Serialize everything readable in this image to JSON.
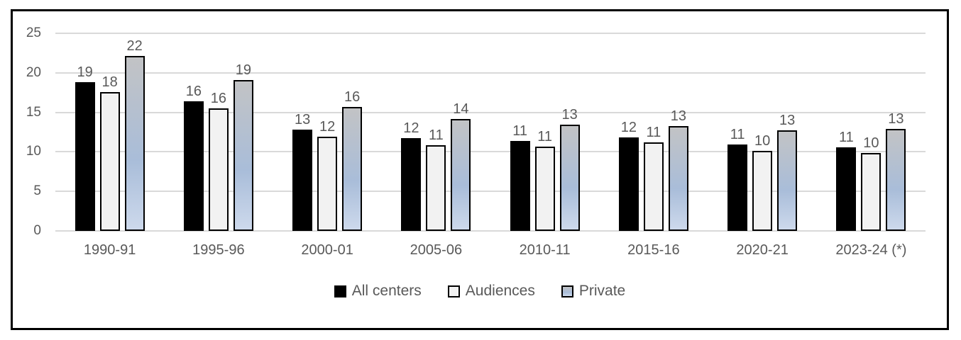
{
  "chart": {
    "background": "#ffffff",
    "frame_border_color": "#000000",
    "gridline_color": "#d9d9d9",
    "text_color": "#595959"
  },
  "chart_data": {
    "type": "bar",
    "title": "",
    "xlabel": "",
    "ylabel": "",
    "categories": [
      "1990-91",
      "1995-96",
      "2000-01",
      "2005-06",
      "2010-11",
      "2015-16",
      "2020-21",
      "2023-24 (*)"
    ],
    "series": [
      {
        "name": "All centers",
        "fill": "#000000",
        "border": "#000000",
        "values": [
          18.8,
          16.4,
          12.8,
          11.7,
          11.4,
          11.8,
          10.9,
          10.6
        ],
        "labels": [
          "19",
          "16",
          "13",
          "12",
          "11",
          "12",
          "11",
          "11"
        ]
      },
      {
        "name": "Audiences",
        "fill": "#f2f2f2",
        "border": "#000000",
        "values": [
          17.6,
          15.5,
          11.9,
          10.8,
          10.7,
          11.2,
          10.1,
          9.9
        ],
        "labels": [
          "18",
          "16",
          "12",
          "11",
          "11",
          "11",
          "10",
          "10"
        ]
      },
      {
        "name": "Private",
        "fill": "gradient",
        "gradient": [
          "#c2c3c5",
          "#a9bdd9",
          "#cdd9ec"
        ],
        "border": "#000000",
        "values": [
          22.1,
          19.1,
          15.7,
          14.2,
          13.4,
          13.3,
          12.7,
          12.9
        ],
        "labels": [
          "22",
          "19",
          "16",
          "14",
          "13",
          "13",
          "13",
          "13"
        ]
      }
    ],
    "ylim": [
      0,
      25
    ],
    "yticks": [
      0,
      5,
      10,
      15,
      20,
      25
    ],
    "grid": true,
    "data_labels": true,
    "legend_position": "bottom"
  }
}
